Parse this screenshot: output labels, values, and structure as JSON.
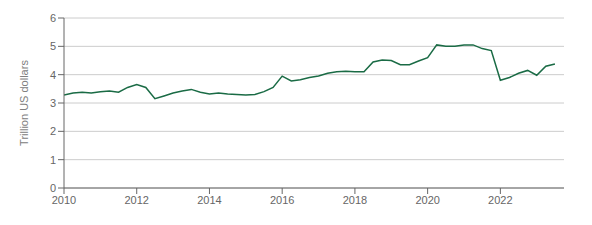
{
  "chart_data": {
    "type": "line",
    "ylabel": "Trillion US dollars",
    "ylim": [
      0,
      6
    ],
    "yticks": [
      0,
      1,
      2,
      3,
      4,
      5,
      6
    ],
    "xlim": [
      2010.0,
      2023.75
    ],
    "xticks": [
      2010,
      2012,
      2014,
      2016,
      2018,
      2020,
      2022
    ],
    "color": "#1a6b45",
    "grid": true,
    "x": [
      2010.0,
      2010.25,
      2010.5,
      2010.75,
      2011.0,
      2011.25,
      2011.5,
      2011.75,
      2012.0,
      2012.25,
      2012.5,
      2012.75,
      2013.0,
      2013.25,
      2013.5,
      2013.75,
      2014.0,
      2014.25,
      2014.5,
      2014.75,
      2015.0,
      2015.25,
      2015.5,
      2015.75,
      2016.0,
      2016.25,
      2016.5,
      2016.75,
      2017.0,
      2017.25,
      2017.5,
      2017.75,
      2018.0,
      2018.25,
      2018.5,
      2018.75,
      2019.0,
      2019.25,
      2019.5,
      2019.75,
      2020.0,
      2020.25,
      2020.5,
      2020.75,
      2021.0,
      2021.25,
      2021.5,
      2021.75,
      2022.0,
      2022.25,
      2022.5,
      2022.75,
      2023.0,
      2023.25,
      2023.5
    ],
    "values": [
      3.28,
      3.35,
      3.38,
      3.35,
      3.4,
      3.42,
      3.38,
      3.55,
      3.65,
      3.55,
      3.15,
      3.25,
      3.35,
      3.42,
      3.48,
      3.38,
      3.32,
      3.35,
      3.32,
      3.3,
      3.28,
      3.3,
      3.4,
      3.55,
      3.95,
      3.78,
      3.82,
      3.9,
      3.95,
      4.05,
      4.1,
      4.12,
      4.1,
      4.1,
      4.45,
      4.52,
      4.5,
      4.35,
      4.35,
      4.48,
      4.6,
      5.05,
      5.0,
      5.0,
      5.05,
      5.05,
      4.92,
      4.85,
      3.8,
      3.9,
      4.05,
      4.15,
      3.98,
      4.3,
      4.38
    ]
  }
}
